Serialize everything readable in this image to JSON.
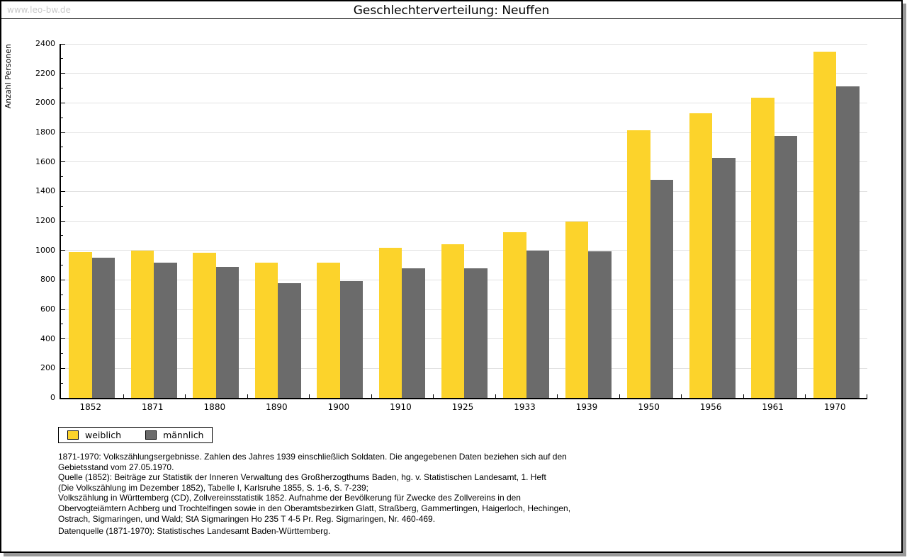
{
  "header": {
    "watermark": "www.leo-bw.de",
    "title": "Geschlechterverteilung: Neuffen"
  },
  "chart_data": {
    "type": "bar",
    "title": "Geschlechterverteilung: Neuffen",
    "ylabel": "Anzahl Personen",
    "xlabel": "",
    "ylim": [
      0,
      2400
    ],
    "ytick_step": 200,
    "ytick_minor_step": 100,
    "grid": true,
    "legend_position": "bottom-left",
    "categories": [
      "1852",
      "1871",
      "1880",
      "1890",
      "1900",
      "1910",
      "1925",
      "1933",
      "1939",
      "1950",
      "1956",
      "1961",
      "1970"
    ],
    "series": [
      {
        "name": "weiblich",
        "color": "#FCD32B",
        "values": [
          990,
          1000,
          985,
          915,
          915,
          1020,
          1040,
          1125,
          1195,
          1815,
          1930,
          2035,
          2345
        ]
      },
      {
        "name": "männlich",
        "color": "#6B6B6B",
        "values": [
          950,
          915,
          890,
          780,
          790,
          880,
          880,
          1000,
          995,
          1480,
          1625,
          1775,
          2110
        ]
      }
    ]
  },
  "footnotes": {
    "lines": [
      "1871-1970: Volkszählungsergebnisse. Zahlen des Jahres 1939 einschließlich Soldaten. Die angegebenen Daten beziehen sich auf den",
      "Gebietsstand vom 27.05.1970.",
      "Quelle (1852): Beiträge zur Statistik der Inneren Verwaltung des Großherzogthums Baden, hg. v. Statistischen Landesamt, 1. Heft",
      "(Die Volkszählung im Dezember 1852), Tabelle I, Karlsruhe 1855, S. 1-6, S. 7-239;",
      "Volkszählung in Württemberg (CD), Zollvereinsstatistik 1852. Aufnahme der Bevölkerung für Zwecke des Zollvereins in den",
      "Obervogteiämtern Achberg und Trochtelfingen sowie in den Oberamtsbezirken Glatt, Straßberg, Gammertingen, Haigerloch, Hechingen,",
      "Ostrach, Sigmaringen, und Wald; StA Sigmaringen Ho 235 T 4-5 Pr. Reg. Sigmaringen, Nr. 460-469."
    ],
    "datasource": "Datenquelle (1871-1970): Statistisches Landesamt Baden-Württemberg."
  }
}
